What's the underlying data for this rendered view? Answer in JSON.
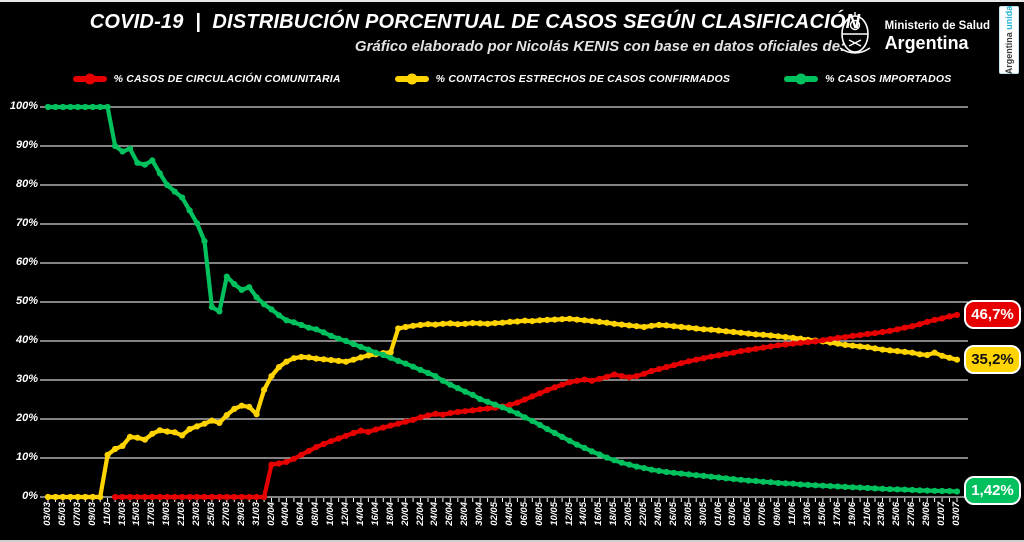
{
  "header": {
    "title": "COVID-19  |  DISTRIBUCIÓN PORCENTUAL DE CASOS SEGÚN CLASIFICACIÓN",
    "subtitle": "Gráfico elaborado por Nicolás KENIS con base en datos oficiales de:",
    "ministry": {
      "line1": "Ministerio de Salud",
      "line2": "Argentina"
    },
    "side_banner": {
      "text_primary": "Argentina ",
      "text_accent": "unida"
    }
  },
  "colors": {
    "background": "#000000",
    "grid": "#cfcfcf",
    "text": "#ffffff",
    "red": "#e60000",
    "yellow": "#ffd400",
    "green": "#00c15e",
    "banner_accent": "#1fb3d1"
  },
  "chart_data": {
    "type": "line",
    "title": "COVID-19 | Distribución porcentual de casos según clasificación",
    "ylim": [
      0,
      100
    ],
    "grid": true,
    "legend_position": "top",
    "x_label_step": 2,
    "y_ticks": [
      "0%",
      "10%",
      "20%",
      "30%",
      "40%",
      "50%",
      "60%",
      "70%",
      "80%",
      "90%",
      "100%"
    ],
    "x": [
      "03/03",
      "04/03",
      "05/03",
      "06/03",
      "07/03",
      "08/03",
      "09/03",
      "10/03",
      "11/03",
      "12/03",
      "13/03",
      "14/03",
      "15/03",
      "16/03",
      "17/03",
      "18/03",
      "19/03",
      "20/03",
      "21/03",
      "22/03",
      "23/03",
      "24/03",
      "25/03",
      "26/03",
      "27/03",
      "28/03",
      "29/03",
      "30/03",
      "31/03",
      "01/04",
      "02/04",
      "03/04",
      "04/04",
      "05/04",
      "06/04",
      "07/04",
      "08/04",
      "09/04",
      "10/04",
      "11/04",
      "12/04",
      "13/04",
      "14/04",
      "15/04",
      "16/04",
      "17/04",
      "18/04",
      "19/04",
      "20/04",
      "21/04",
      "22/04",
      "23/04",
      "24/04",
      "25/04",
      "26/04",
      "27/04",
      "28/04",
      "29/04",
      "30/04",
      "01/05",
      "02/05",
      "03/05",
      "04/05",
      "05/05",
      "06/05",
      "07/05",
      "08/05",
      "09/05",
      "10/05",
      "11/05",
      "12/05",
      "13/05",
      "14/05",
      "15/05",
      "16/05",
      "17/05",
      "18/05",
      "19/05",
      "20/05",
      "21/05",
      "22/05",
      "23/05",
      "24/05",
      "25/05",
      "26/05",
      "27/05",
      "28/05",
      "29/05",
      "30/05",
      "31/05",
      "01/06",
      "02/06",
      "03/06",
      "04/06",
      "05/06",
      "06/06",
      "07/06",
      "08/06",
      "09/06",
      "10/06",
      "11/06",
      "12/06",
      "13/06",
      "14/06",
      "15/06",
      "16/06",
      "17/06",
      "18/06",
      "19/06",
      "20/06",
      "21/06",
      "22/06",
      "23/06",
      "24/06",
      "25/06",
      "26/06",
      "27/06",
      "28/06",
      "29/06",
      "30/06",
      "01/07",
      "02/07",
      "03/07"
    ],
    "draw_order": [
      1,
      0,
      2
    ],
    "series": [
      {
        "id": "comunitaria",
        "name": "% CASOS DE CIRCULACIÓN COMUNITARIA",
        "color": "#e60000",
        "end_label": "46,7%",
        "values": [
          null,
          null,
          null,
          null,
          null,
          null,
          null,
          null,
          null,
          0,
          0,
          0,
          0,
          0,
          0,
          0,
          0,
          0,
          0,
          0,
          0,
          0,
          0,
          0,
          0,
          0,
          0,
          0,
          0,
          0,
          8.3,
          8.6,
          9.0,
          9.8,
          10.8,
          11.8,
          12.8,
          13.6,
          14.3,
          15.0,
          15.7,
          16.4,
          17.0,
          16.7,
          17.3,
          17.8,
          18.3,
          18.8,
          19.3,
          19.8,
          20.4,
          20.9,
          21.3,
          21.1,
          21.5,
          21.8,
          22.0,
          22.2,
          22.5,
          22.7,
          22.9,
          23.2,
          23.6,
          24.2,
          25.0,
          25.8,
          26.6,
          27.4,
          28.1,
          28.8,
          29.4,
          29.8,
          30.1,
          29.8,
          30.3,
          30.8,
          31.4,
          31.0,
          30.7,
          31.0,
          31.6,
          32.3,
          32.8,
          33.3,
          33.8,
          34.3,
          34.8,
          35.2,
          35.6,
          36.0,
          36.3,
          36.7,
          37.0,
          37.4,
          37.7,
          38.0,
          38.3,
          38.6,
          38.9,
          39.1,
          39.3,
          39.5,
          39.7,
          39.9,
          40.2,
          40.5,
          40.8,
          41.0,
          41.3,
          41.5,
          41.8,
          42.0,
          42.3,
          42.6,
          43.0,
          43.4,
          43.8,
          44.3,
          44.9,
          45.4,
          45.8,
          46.3,
          46.7
        ]
      },
      {
        "id": "contactos",
        "name": "% CONTACTOS ESTRECHOS DE CASOS CONFIRMADOS",
        "color": "#ffd400",
        "end_label": "35,2%",
        "values": [
          0,
          0,
          0,
          0,
          0,
          0,
          0,
          0,
          10.8,
          12.3,
          13.1,
          15.4,
          15.2,
          14.7,
          16.2,
          17.1,
          16.8,
          16.6,
          15.8,
          17.4,
          18.1,
          18.8,
          19.6,
          19.0,
          21.0,
          22.6,
          23.4,
          23.1,
          21.2,
          27.5,
          31.0,
          33.3,
          34.7,
          35.6,
          35.9,
          35.8,
          35.5,
          35.3,
          35.1,
          34.9,
          34.7,
          35.2,
          35.8,
          36.3,
          36.6,
          36.9,
          37.1,
          43.2,
          43.6,
          43.9,
          44.1,
          44.3,
          44.2,
          44.4,
          44.5,
          44.3,
          44.4,
          44.6,
          44.5,
          44.4,
          44.6,
          44.7,
          44.9,
          45.0,
          45.2,
          45.1,
          45.3,
          45.4,
          45.5,
          45.6,
          45.7,
          45.5,
          45.3,
          45.1,
          44.9,
          44.7,
          44.4,
          44.2,
          44.0,
          43.8,
          43.6,
          43.9,
          44.1,
          44.0,
          43.8,
          43.6,
          43.4,
          43.2,
          43.0,
          42.9,
          42.7,
          42.5,
          42.3,
          42.1,
          41.9,
          41.7,
          41.6,
          41.4,
          41.2,
          41.0,
          40.8,
          40.6,
          40.3,
          40.1,
          39.9,
          39.6,
          39.3,
          39.0,
          38.8,
          38.6,
          38.4,
          38.1,
          37.8,
          37.6,
          37.4,
          37.2,
          37.0,
          36.6,
          36.4,
          37.0,
          36.2,
          35.7,
          35.2
        ]
      },
      {
        "id": "importados",
        "name": "% CASOS IMPORTADOS",
        "color": "#00c15e",
        "end_label": "1,42%",
        "values": [
          100,
          100,
          100,
          100,
          100,
          100,
          100,
          100,
          100,
          90.0,
          88.6,
          89.3,
          85.7,
          85.2,
          86.3,
          83.0,
          80.0,
          78.3,
          76.8,
          73.5,
          70.2,
          65.6,
          48.7,
          47.6,
          56.5,
          54.6,
          53.1,
          53.8,
          51.2,
          49.4,
          48.1,
          46.6,
          45.3,
          44.8,
          44.1,
          43.4,
          43.0,
          42.2,
          41.3,
          40.6,
          40.0,
          39.2,
          38.5,
          37.8,
          37.0,
          36.4,
          35.7,
          34.9,
          34.2,
          33.4,
          32.6,
          31.8,
          31.0,
          29.8,
          28.8,
          27.9,
          27.0,
          26.2,
          25.1,
          24.4,
          23.7,
          23.0,
          22.2,
          21.4,
          20.4,
          19.5,
          18.5,
          17.4,
          16.4,
          15.4,
          14.4,
          13.4,
          12.6,
          11.7,
          10.9,
          10.1,
          9.4,
          8.8,
          8.3,
          7.8,
          7.4,
          7.0,
          6.7,
          6.4,
          6.2,
          6.0,
          5.8,
          5.6,
          5.4,
          5.2,
          5.0,
          4.8,
          4.6,
          4.4,
          4.2,
          4.1,
          3.9,
          3.8,
          3.6,
          3.5,
          3.4,
          3.2,
          3.1,
          3.0,
          2.9,
          2.8,
          2.7,
          2.6,
          2.5,
          2.4,
          2.3,
          2.2,
          2.1,
          2.0,
          1.95,
          1.9,
          1.8,
          1.7,
          1.65,
          1.6,
          1.55,
          1.5,
          1.42
        ]
      }
    ]
  }
}
